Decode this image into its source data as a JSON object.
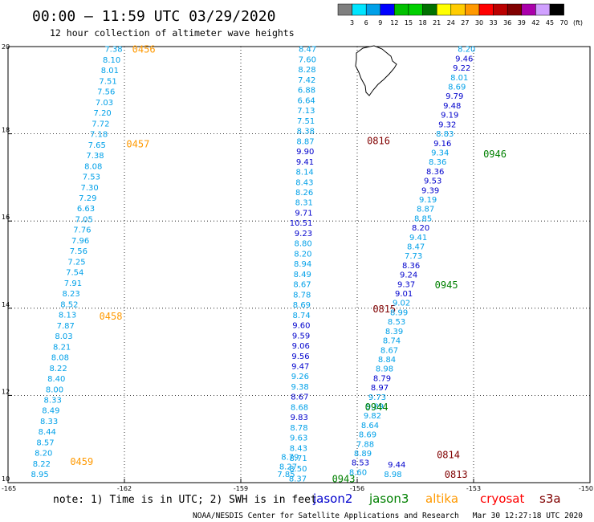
{
  "header": {
    "title": "00:00 – 11:59 UTC 03/29/2020",
    "subtitle": "12 hour collection of altimeter wave heights"
  },
  "colorbar": {
    "ticks": [
      "3",
      "6",
      "9",
      "12",
      "15",
      "18",
      "21",
      "24",
      "27",
      "30",
      "33",
      "36",
      "39",
      "42",
      "45",
      "70"
    ],
    "unit": "(ft)",
    "colors": [
      "#7f7f7f",
      "#00e5ff",
      "#00a0e8",
      "#0000ff",
      "#00c000",
      "#00d000",
      "#007000",
      "#ffff00",
      "#ffcc00",
      "#ff9900",
      "#ff0000",
      "#bb0000",
      "#800000",
      "#aa00aa",
      "#d0a0ff",
      "#000000"
    ]
  },
  "axes": {
    "x_ticks": [
      "-165",
      "-162",
      "-159",
      "-156",
      "-153",
      "-150"
    ],
    "y_ticks": [
      "20",
      "18",
      "16",
      "14",
      "12",
      "10"
    ],
    "lon_range": [
      -165,
      -150
    ],
    "lat_range": [
      10,
      20
    ]
  },
  "footer": {
    "note": "note: 1) Time is in UTC; 2) SWH is in feet",
    "legend": [
      {
        "name": "jason2",
        "color": "#0000cc"
      },
      {
        "name": "jason3",
        "color": "#008000"
      },
      {
        "name": "altika",
        "color": "#ff9900"
      },
      {
        "name": "cryosat",
        "color": "#ff0000"
      },
      {
        "name": "s3a",
        "color": "#800000"
      }
    ],
    "credit": "NOAA/NESDIS Center for Satellite Applications and Research",
    "timestamp": "Mar 30 12:27:18 UTC 2020"
  },
  "tracks": [
    {
      "satellite": "altika",
      "time": "0456",
      "time_color": "#ff9900",
      "label_pos": {
        "lon": -161.8,
        "lat": 19.95
      },
      "start": {
        "lon": -162.05,
        "lat": 19.95
      },
      "end": {
        "lon": -163.95,
        "lat": 10.2
      },
      "colors": [
        "#00a0e8"
      ],
      "values": [
        "7.38",
        "8.10",
        "8.01",
        "7.51",
        "7.56",
        "7.03",
        "7.20",
        "7.72",
        "7.18",
        "7.65",
        "7.38",
        "8.08",
        "7.53",
        "7.30",
        "7.29",
        "6.63",
        "7.05",
        "7.76",
        "7.96",
        "7.56",
        "7.25",
        "7.54",
        "7.91",
        "8.23",
        "8.52",
        "8.13",
        "7.87",
        "8.03",
        "8.21",
        "8.08",
        "8.22",
        "8.40",
        "8.00",
        "8.33",
        "8.49",
        "8.33",
        "8.44",
        "8.57",
        "8.20",
        "8.22",
        "8.95"
      ],
      "time_labels": [
        {
          "time": "0456",
          "lon": -161.8,
          "lat": 19.95
        },
        {
          "time": "0457",
          "lon": -161.95,
          "lat": 17.78
        },
        {
          "time": "0458",
          "lon": -162.65,
          "lat": 13.83
        },
        {
          "time": "0459",
          "lon": -163.4,
          "lat": 10.5
        }
      ]
    },
    {
      "satellite": "s3a",
      "start": {
        "lon": -157.05,
        "lat": 19.95
      },
      "end": {
        "lon": -157.3,
        "lat": 10.1
      },
      "colors": [
        "#00a0e8",
        "#00a0e8",
        "#00a0e8",
        "#00a0e8",
        "#00a0e8",
        "#00a0e8",
        "#00a0e8",
        "#00a0e8",
        "#00a0e8",
        "#00a0e8",
        "#0000cc",
        "#0000cc",
        "#00a0e8",
        "#00a0e8",
        "#00a0e8",
        "#00a0e8",
        "#0000cc",
        "#0000cc",
        "#0000cc",
        "#00a0e8",
        "#00a0e8",
        "#00a0e8",
        "#00a0e8",
        "#00a0e8",
        "#00a0e8",
        "#00a0e8",
        "#00a0e8",
        "#0000cc",
        "#0000cc",
        "#0000cc",
        "#0000cc",
        "#0000cc",
        "#00a0e8",
        "#00a0e8",
        "#0000cc",
        "#00a0e8",
        "#0000cc",
        "#00a0e8",
        "#00a0e8",
        "#00a0e8",
        "#00a0e8",
        "#00a0e8",
        "#00a0e8"
      ],
      "values": [
        "8.47",
        "7.60",
        "8.28",
        "7.42",
        "6.88",
        "6.64",
        "7.13",
        "7.51",
        "8.38",
        "8.87",
        "9.90",
        "9.41",
        "8.14",
        "8.43",
        "8.26",
        "8.31",
        "9.71",
        "10.51",
        "9.23",
        "8.80",
        "8.20",
        "8.94",
        "8.49",
        "8.67",
        "8.78",
        "8.69",
        "8.74",
        "9.60",
        "9.59",
        "9.06",
        "9.56",
        "9.47",
        "9.26",
        "9.38",
        "8.67",
        "8.68",
        "9.83",
        "8.78",
        "9.63",
        "8.43",
        "8.71",
        "8.50",
        "8.37"
      ],
      "time_labels": [
        {
          "time": "0816",
          "lon": -155.75,
          "lat": 17.85,
          "color": "#800000"
        },
        {
          "time": "0815",
          "lon": -155.6,
          "lat": 14.0,
          "color": "#800000"
        }
      ]
    },
    {
      "satellite": "jason3",
      "start": {
        "lon": -152.95,
        "lat": 19.95
      },
      "end": {
        "lon": -155.75,
        "lat": 10.25
      },
      "colors": [
        "#00a0e8",
        "#0000cc",
        "#0000cc",
        "#00a0e8",
        "#00a0e8",
        "#0000cc",
        "#0000cc",
        "#0000cc",
        "#0000cc",
        "#00a0e8",
        "#0000cc",
        "#00a0e8",
        "#00a0e8",
        "#0000cc",
        "#0000cc",
        "#0000cc",
        "#00a0e8",
        "#00a0e8",
        "#00a0e8",
        "#0000cc",
        "#00a0e8",
        "#00a0e8",
        "#00a0e8",
        "#0000cc",
        "#0000cc",
        "#0000cc",
        "#0000cc",
        "#00a0e8",
        "#00a0e8",
        "#00a0e8",
        "#00a0e8",
        "#00a0e8",
        "#00a0e8",
        "#00a0e8",
        "#00a0e8",
        "#0000cc",
        "#0000cc",
        "#00a0e8",
        "#00a0e8",
        "#00a0e8",
        "#00a0e8",
        "#00a0e8",
        "#00a0e8",
        "#00a0e8",
        "#0000cc",
        "#00a0e8"
      ],
      "values": [
        "8.20",
        "9.46",
        "9.22",
        "8.01",
        "8.69",
        "9.79",
        "9.48",
        "9.19",
        "9.32",
        "8.83",
        "9.16",
        "9.34",
        "8.36",
        "8.36",
        "9.53",
        "9.39",
        "9.19",
        "8.87",
        "8.85",
        "8.20",
        "9.41",
        "8.47",
        "7.73",
        "8.36",
        "9.24",
        "9.37",
        "9.01",
        "9.02",
        "8.99",
        "8.53",
        "8.39",
        "8.74",
        "8.67",
        "8.84",
        "8.98",
        "8.79",
        "8.97",
        "9.73",
        "9.89",
        "9.82",
        "8.64",
        "8.69",
        "7.88",
        "8.89",
        "8.53",
        "8.60"
      ],
      "time_labels": [
        {
          "time": "0946",
          "lon": -152.75,
          "lat": 17.55,
          "color": "#008000"
        },
        {
          "time": "0945",
          "lon": -154.0,
          "lat": 14.55,
          "color": "#008000"
        },
        {
          "time": "0944",
          "lon": -155.8,
          "lat": 11.75,
          "color": "#008000"
        },
        {
          "time": "0943",
          "lon": -156.65,
          "lat": 10.1,
          "color": "#008000"
        },
        {
          "time": "0814",
          "lon": -153.95,
          "lat": 10.65,
          "color": "#800000"
        },
        {
          "time": "0813",
          "lon": -153.75,
          "lat": 10.2,
          "color": "#800000"
        }
      ]
    }
  ],
  "extra_values": [
    {
      "value": "8.79",
      "lon": -157.5,
      "lat": 10.6,
      "color": "#00a0e8"
    },
    {
      "value": "8.27",
      "lon": -157.55,
      "lat": 10.38,
      "color": "#00a0e8"
    },
    {
      "value": "7.85",
      "lon": -157.6,
      "lat": 10.2,
      "color": "#00a0e8"
    },
    {
      "value": "9.44",
      "lon": -154.75,
      "lat": 10.42,
      "color": "#0000cc"
    },
    {
      "value": "8.98",
      "lon": -154.85,
      "lat": 10.2,
      "color": "#00a0e8"
    }
  ]
}
